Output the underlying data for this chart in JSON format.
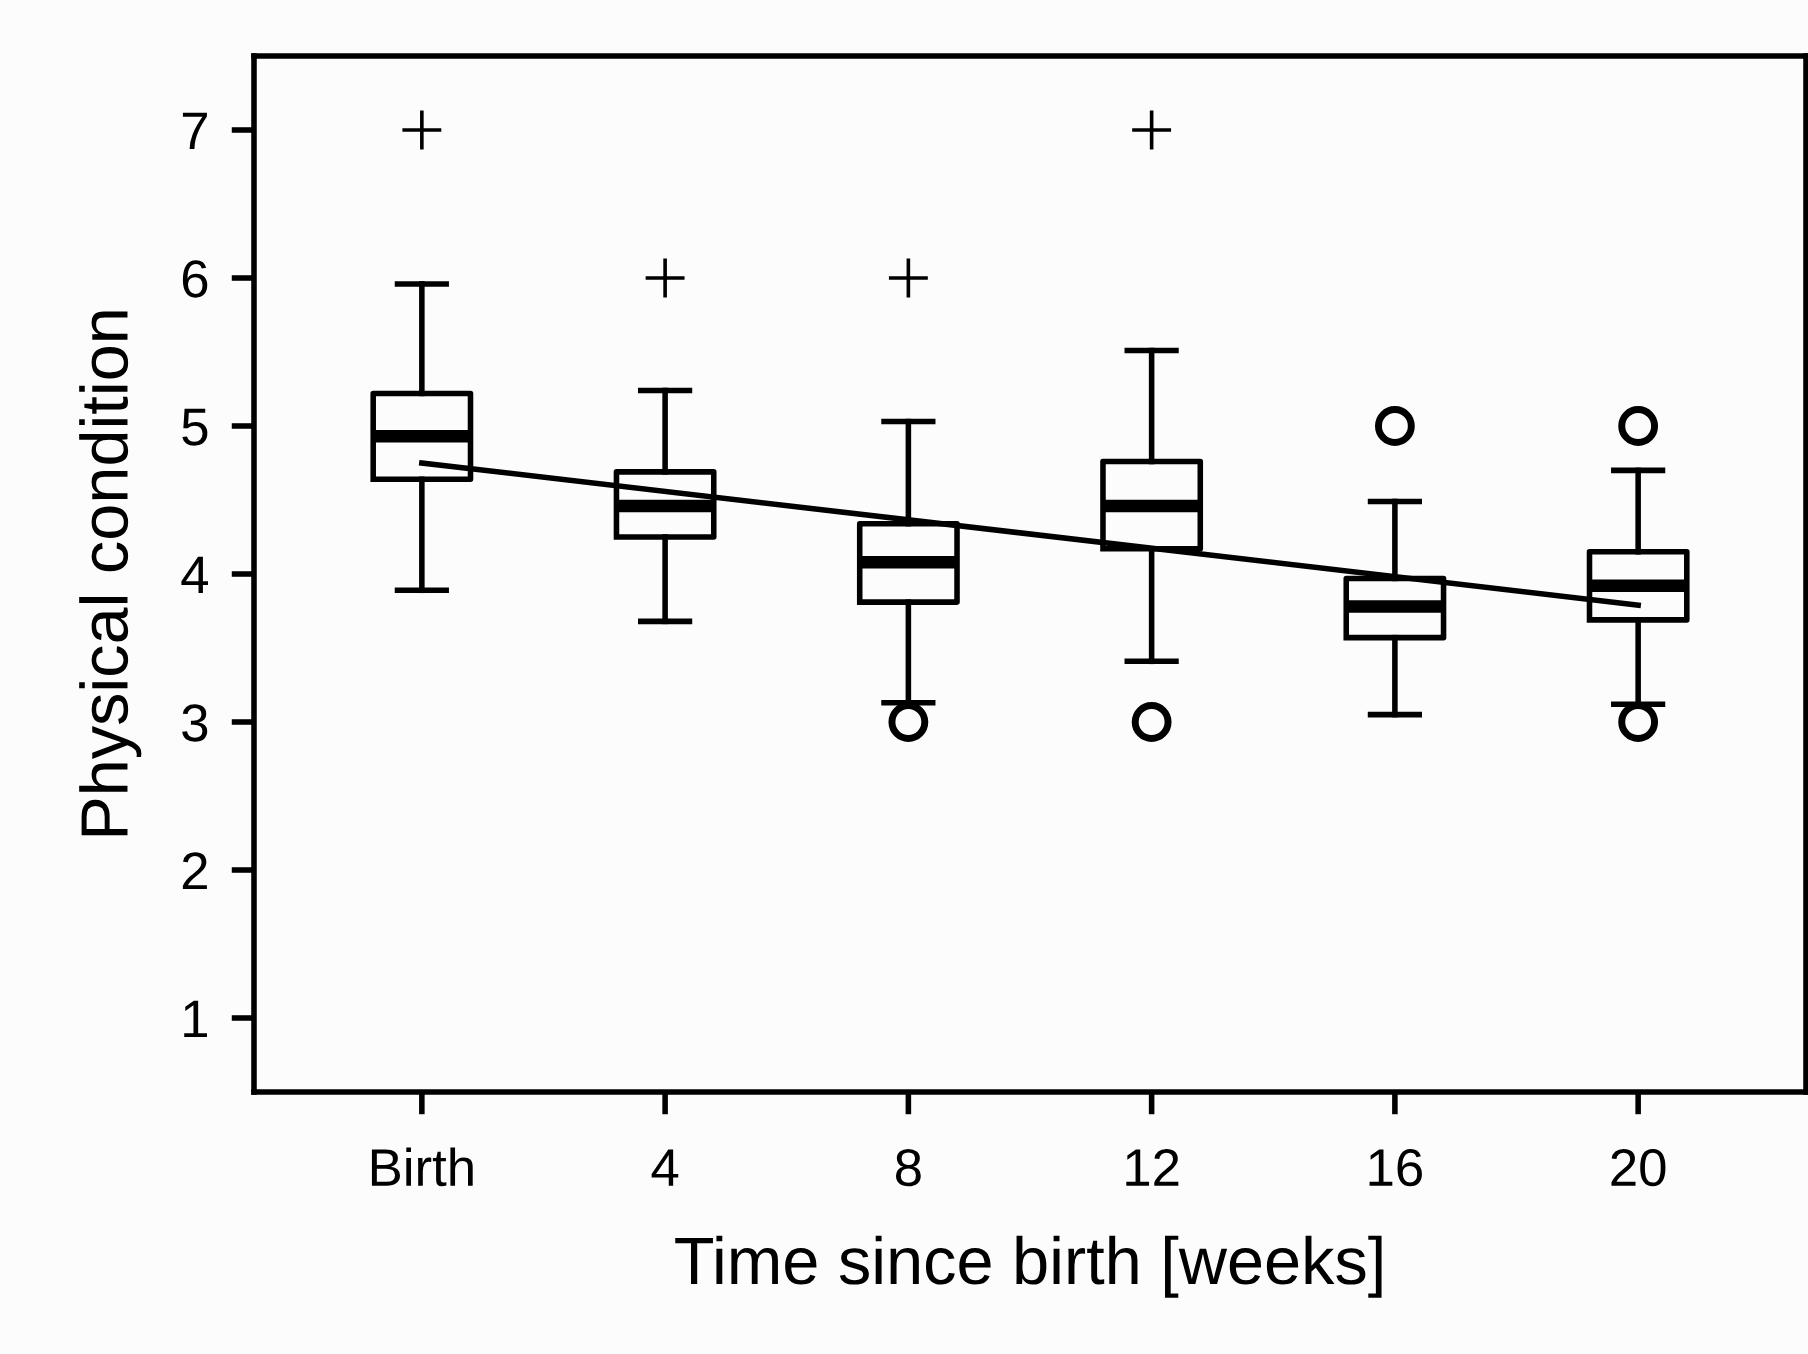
{
  "chart_data": {
    "type": "box",
    "xlabel": "Time since birth [weeks]",
    "ylabel": "Physical condition",
    "categories": [
      "Birth",
      "4",
      "8",
      "12",
      "16",
      "20"
    ],
    "ylim": [
      0.5,
      7.5
    ],
    "yticks": [
      1,
      2,
      3,
      4,
      5,
      6,
      7
    ],
    "grid": false,
    "legend": false,
    "boxes": [
      {
        "low": 3.89,
        "q1": 4.64,
        "median": 4.93,
        "q3": 5.22,
        "high": 5.96,
        "outliers": [
          7
        ]
      },
      {
        "low": 3.68,
        "q1": 4.25,
        "median": 4.46,
        "q3": 4.69,
        "high": 5.24,
        "outliers": [
          6
        ]
      },
      {
        "low": 3.13,
        "q1": 3.81,
        "median": 4.08,
        "q3": 4.34,
        "high": 5.03,
        "outliers": [
          6
        ]
      },
      {
        "low": 3.41,
        "q1": 4.17,
        "median": 4.46,
        "q3": 4.76,
        "high": 5.51,
        "outliers": [
          7
        ]
      },
      {
        "low": 3.05,
        "q1": 3.57,
        "median": 3.78,
        "q3": 3.97,
        "high": 4.49
      },
      {
        "low": 3.12,
        "q1": 3.69,
        "median": 3.92,
        "q3": 4.15,
        "high": 4.7
      }
    ],
    "series": [
      {
        "type": "scatter",
        "marker": "circle",
        "color": "#000000",
        "x": [
          "8",
          "12",
          "16",
          "20",
          "20"
        ],
        "values": [
          3,
          3,
          5,
          5,
          3
        ]
      },
      {
        "type": "line",
        "marker": "none",
        "color": "#000000",
        "x": [
          "Birth",
          "20"
        ],
        "values": [
          4.75,
          3.79
        ]
      }
    ]
  }
}
